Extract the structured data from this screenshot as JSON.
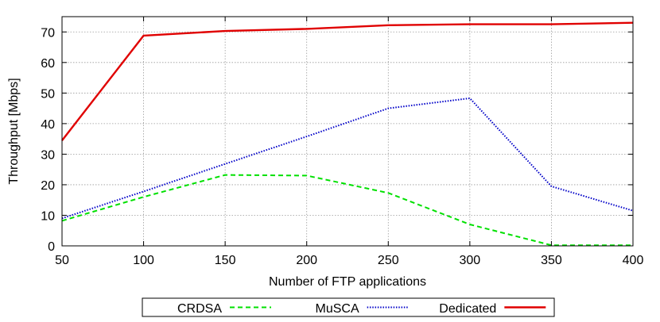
{
  "chart_data": {
    "type": "line",
    "xlabel": "Number of FTP applications",
    "ylabel": "Throughput [Mbps]",
    "xlim": [
      50,
      400
    ],
    "ylim": [
      0,
      75
    ],
    "xticks": [
      50,
      100,
      150,
      200,
      250,
      300,
      350,
      400
    ],
    "yticks": [
      0,
      10,
      20,
      30,
      40,
      50,
      60,
      70
    ],
    "grid": true,
    "legend_position": "bottom-center",
    "series": [
      {
        "name": "CRDSA",
        "color": "#00e000",
        "dash": "dashed",
        "x": [
          50,
          100,
          150,
          200,
          250,
          300,
          350,
          400
        ],
        "y": [
          8.2,
          16.0,
          23.2,
          23.0,
          17.3,
          7.0,
          0.2,
          0.2
        ]
      },
      {
        "name": "MuSCA",
        "color": "#0000c8",
        "dash": "dotted",
        "x": [
          50,
          100,
          150,
          200,
          250,
          300,
          350,
          400
        ],
        "y": [
          9.0,
          17.8,
          26.8,
          35.8,
          45.0,
          48.3,
          19.5,
          11.5
        ]
      },
      {
        "name": "Dedicated",
        "color": "#e00000",
        "dash": "solid",
        "x": [
          50,
          100,
          150,
          200,
          250,
          300,
          350,
          400
        ],
        "y": [
          34.5,
          68.8,
          70.3,
          71.0,
          72.2,
          72.5,
          72.5,
          73.0
        ]
      }
    ]
  }
}
